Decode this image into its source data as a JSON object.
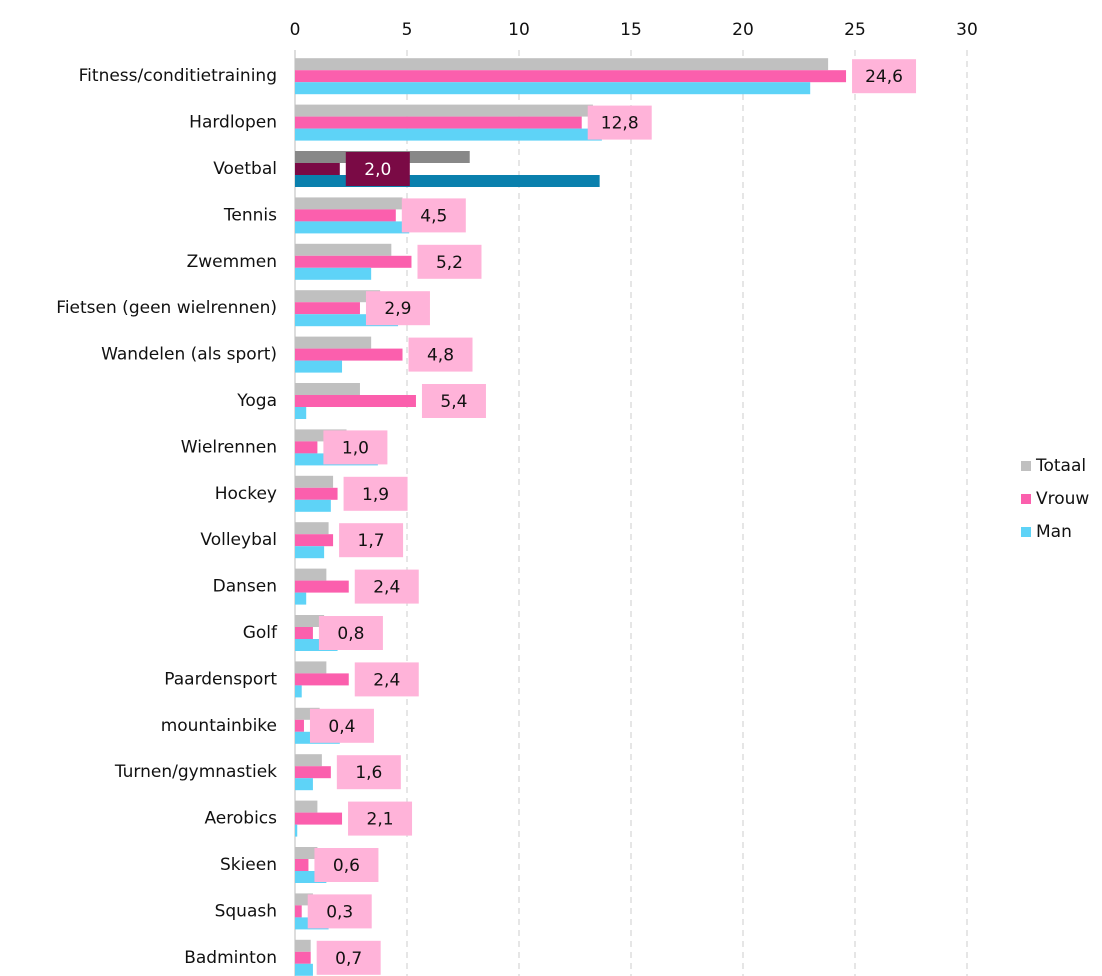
{
  "chart_data": {
    "type": "bar",
    "orientation": "horizontal",
    "categories": [
      "Fitness/conditietraining",
      "Hardlopen",
      "Voetbal",
      "Tennis",
      "Zwemmen",
      "Fietsen (geen wielrennen)",
      "Wandelen (als sport)",
      "Yoga",
      "Wielrennen",
      "Hockey",
      "Volleybal",
      "Dansen",
      "Golf",
      "Paardensport",
      "mountainbike",
      "Turnen/gymnastiek",
      "Aerobics",
      "Skieen",
      "Squash",
      "Badminton"
    ],
    "series": [
      {
        "name": "Totaal",
        "color": "#c0c0c0",
        "values": [
          23.8,
          13.3,
          7.8,
          4.8,
          4.3,
          3.8,
          3.4,
          2.9,
          2.3,
          1.7,
          1.5,
          1.4,
          1.3,
          1.4,
          1.1,
          1.2,
          1.0,
          1.0,
          0.8,
          0.7
        ]
      },
      {
        "name": "Vrouw",
        "color": "#fb5fad",
        "values": [
          24.6,
          12.8,
          2.0,
          4.5,
          5.2,
          2.9,
          4.8,
          5.4,
          1.0,
          1.9,
          1.7,
          2.4,
          0.8,
          2.4,
          0.4,
          1.6,
          2.1,
          0.6,
          0.3,
          0.7
        ],
        "value_labels": [
          "24,6",
          "12,8",
          "2,0",
          "4,5",
          "5,2",
          "2,9",
          "4,8",
          "5,4",
          "1,0",
          "1,9",
          "1,7",
          "2,4",
          "0,8",
          "2,4",
          "0,4",
          "1,6",
          "2,1",
          "0,6",
          "0,3",
          "0,7"
        ]
      },
      {
        "name": "Man",
        "color": "#5ed3f7",
        "values": [
          23.0,
          13.7,
          13.6,
          5.1,
          3.4,
          4.6,
          2.1,
          0.5,
          3.7,
          1.6,
          1.3,
          0.5,
          1.9,
          0.3,
          2.0,
          0.8,
          0.1,
          1.4,
          1.5,
          0.8
        ]
      }
    ],
    "highlight": {
      "index": 2,
      "colors": [
        "#888888",
        "#7a0a45",
        "#0a80ad"
      ]
    },
    "label_box_color": "#ffb3d9",
    "xlim": [
      0,
      30
    ],
    "xticks": [
      0,
      5,
      10,
      15,
      20,
      25,
      30
    ],
    "grid": true,
    "legend": "right"
  }
}
